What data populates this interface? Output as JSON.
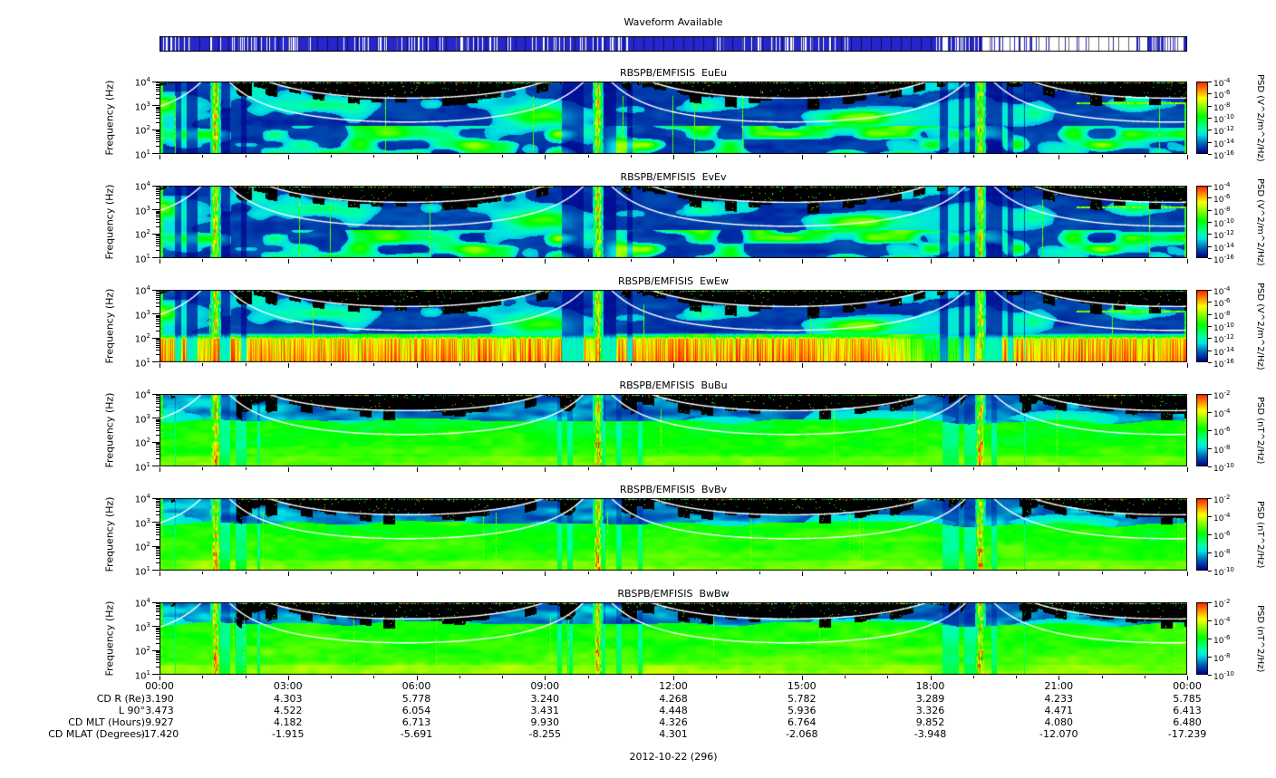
{
  "page": {
    "date_label": "2012-10-22 (296)",
    "background": "#ffffff"
  },
  "waveform_bar": {
    "title": "Waveform Available",
    "fill_color": "#2626cc",
    "segments_f0_f1_density": [
      [
        0,
        0.46,
        0.78
      ],
      [
        0.46,
        0.54,
        1
      ],
      [
        0.54,
        0.67,
        0.68
      ],
      [
        0.67,
        0.755,
        1
      ],
      [
        0.755,
        0.8,
        0.6
      ],
      [
        0.8,
        0.865,
        0.3
      ],
      [
        0.865,
        0.95,
        0.07
      ],
      [
        0.95,
        0.975,
        0.5
      ],
      [
        0.975,
        1,
        0.3
      ]
    ]
  },
  "chart_data": {
    "type": "heatmap",
    "x_axis": {
      "ticks": [
        "00:00",
        "03:00",
        "06:00",
        "09:00",
        "12:00",
        "15:00",
        "18:00",
        "21:00",
        "00:00"
      ],
      "hours": [
        0,
        3,
        6,
        9,
        12,
        15,
        18,
        21,
        24
      ],
      "range_hours": [
        0,
        24
      ]
    },
    "y_axis": {
      "label": "Frequency (Hz)",
      "scale": "log",
      "range_hz": [
        10,
        10000
      ],
      "tick_exponents": [
        4,
        3,
        2,
        1
      ]
    },
    "panels": [
      {
        "title": "RBSPB/EMFISIS  EuEu",
        "kind": "E",
        "colorbar_label": "PSD (V^2/m^2/Hz)",
        "colorbar_tick_exponents": [
          -4,
          -6,
          -8,
          -10,
          -12,
          -14,
          -16
        ],
        "content": "dark-blue background with cyan/green wave patches 100 Hz - 3 kHz, black above fce, bright broadband vertical streaks near perigee passes"
      },
      {
        "title": "RBSPB/EMFISIS  EvEv",
        "kind": "E",
        "colorbar_label": "PSD (V^2/m^2/Hz)",
        "colorbar_tick_exponents": [
          -4,
          -6,
          -8,
          -10,
          -12,
          -14,
          -16
        ],
        "content": "nearly identical to EuEu panel"
      },
      {
        "title": "RBSPB/EMFISIS  EwEw",
        "kind": "Ew",
        "colorbar_label": "PSD (V^2/m^2/Hz)",
        "colorbar_tick_exponents": [
          -4,
          -6,
          -8,
          -10,
          -12,
          -14,
          -16
        ],
        "content": "like EuEu plus intense striated orange/red band below ~100 Hz lasting all day"
      },
      {
        "title": "RBSPB/EMFISIS  BuBu",
        "kind": "B",
        "colorbar_label": "PSD (nT^2/Hz)",
        "colorbar_tick_exponents": [
          -2,
          -4,
          -6,
          -8,
          -10
        ],
        "content": "broad green band below ~1 kHz, blue then black above, yellow/orange streaks at perigee"
      },
      {
        "title": "RBSPB/EMFISIS  BvBv",
        "kind": "B",
        "colorbar_label": "PSD (nT^2/Hz)",
        "colorbar_tick_exponents": [
          -2,
          -4,
          -6,
          -8,
          -10
        ],
        "content": "similar to BuBu with brighter perigee streaks"
      },
      {
        "title": "RBSPB/EMFISIS  BwBw",
        "kind": "B",
        "colorbar_label": "PSD (nT^2/Hz)",
        "colorbar_tick_exponents": [
          -2,
          -4,
          -6,
          -8,
          -10
        ],
        "content": "similar to BuBu, green extends slightly higher in frequency"
      }
    ],
    "overlay_curves": "two white frequency curves (upper ~10x the lower) peaking near 01:20, 10:10 and 19:10, dipping near apogee ~06:00, 15:00, 24:00",
    "ephemeris": {
      "rows": [
        {
          "label": "CD R (Re)",
          "values": [
            "3.190",
            "4.303",
            "5.778",
            "3.240",
            "4.268",
            "5.782",
            "3.289",
            "4.233",
            "5.785"
          ]
        },
        {
          "label": "L 90°",
          "values": [
            "3.473",
            "4.522",
            "6.054",
            "3.431",
            "4.448",
            "5.936",
            "3.326",
            "4.471",
            "6.413"
          ]
        },
        {
          "label": "CD MLT (Hours)",
          "values": [
            "9.927",
            "4.182",
            "6.713",
            "9.930",
            "4.326",
            "6.764",
            "9.852",
            "4.080",
            "6.480"
          ]
        },
        {
          "label": "CD MLAT (Degrees)",
          "values": [
            "-17.420",
            "-1.915",
            "-5.691",
            "-8.255",
            "4.301",
            "-2.068",
            "-3.948",
            "-12.070",
            "-17.239"
          ]
        }
      ]
    }
  }
}
